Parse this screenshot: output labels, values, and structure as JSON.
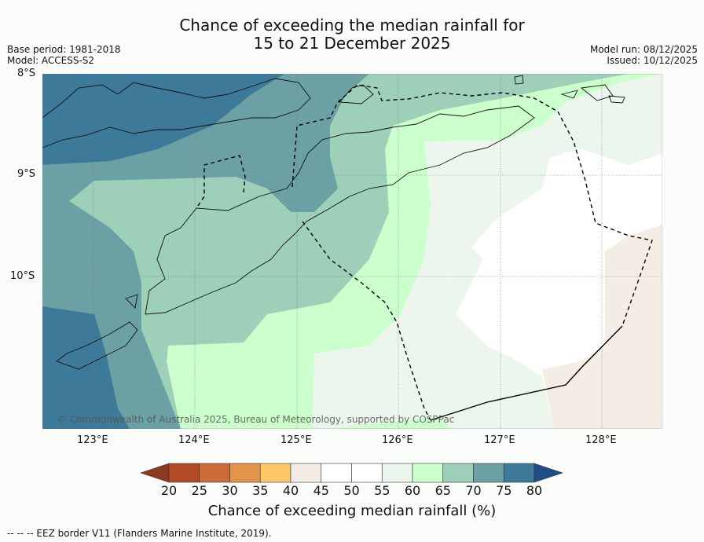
{
  "title_line1": "Chance of exceeding the median rainfall for",
  "title_line2": "15 to 21 December 2025",
  "base_period": "Base period: 1981-2018",
  "model": "Model: ACCESS-S2",
  "model_run": "Model run: 08/12/2025",
  "issued": "Issued: 10/12/2025",
  "lat_ticks": [
    "8°S",
    "9°S",
    "10°S"
  ],
  "lon_ticks": [
    "123°E",
    "124°E",
    "125°E",
    "126°E",
    "127°E",
    "128°E"
  ],
  "copyright": "© Commonwealth of Australia 2025, Bureau of Meteorology, supported by COSPPac",
  "colorbar": {
    "labels": [
      "20",
      "25",
      "30",
      "35",
      "40",
      "45",
      "50",
      "55",
      "60",
      "65",
      "70",
      "75",
      "80"
    ],
    "colors": [
      "#b24a28",
      "#cc6c38",
      "#e0944c",
      "#fdc866",
      "#f3ede6",
      "#ffffff",
      "#ffffff",
      "#ecf6ec",
      "#cbffcb",
      "#9dcfb9",
      "#6ba1a4",
      "#3d7999"
    ],
    "under_color": "#8e3a22",
    "over_color": "#1d4e86",
    "title": "Chance of exceeding median rainfall (%)"
  },
  "footer": "--  --  -- EEZ border V11 (Flanders Marine Institute, 2019)."
}
